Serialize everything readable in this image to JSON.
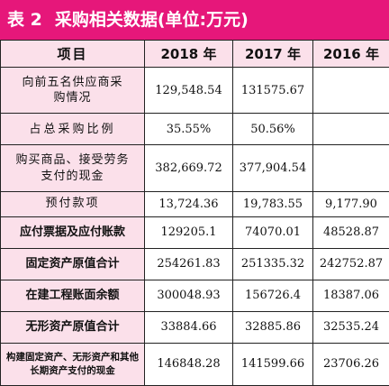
{
  "title": {
    "prefix": "表 2",
    "text": "采购相关数据(单位:万元)"
  },
  "colors": {
    "accent": "#e6177a",
    "label_bg": "#fbe0ea"
  },
  "headers": [
    "项目",
    "2018 年",
    "2017 年",
    "2016 年"
  ],
  "rows": [
    {
      "label": "向前五名供应商采购情况",
      "values": [
        "129,548.54",
        "131575.67",
        ""
      ]
    },
    {
      "label": "占总采购比例",
      "values": [
        "35.55%",
        "50.56%",
        ""
      ]
    },
    {
      "label": "购买商品、接受劳务支付的现金",
      "values": [
        "382,669.72",
        "377,904.54",
        ""
      ]
    },
    {
      "label": "预付款项",
      "values": [
        "13,724.36",
        "19,783.55",
        "9,177.90"
      ]
    },
    {
      "label": "应付票据及应付账款",
      "values": [
        "129205.1",
        "74070.01",
        "48528.87"
      ]
    },
    {
      "label": "固定资产原值合计",
      "values": [
        "254261.83",
        "251335.32",
        "242752.87"
      ]
    },
    {
      "label": "在建工程账面余额",
      "values": [
        "300048.93",
        "156726.4",
        "18387.06"
      ]
    },
    {
      "label": "无形资产原值合计",
      "values": [
        "33884.66",
        "32885.86",
        "32535.24"
      ]
    },
    {
      "label": "构建固定资产、无形资产和其他长期资产支付的现金",
      "values": [
        "146848.28",
        "141599.66",
        "23706.26"
      ]
    }
  ]
}
